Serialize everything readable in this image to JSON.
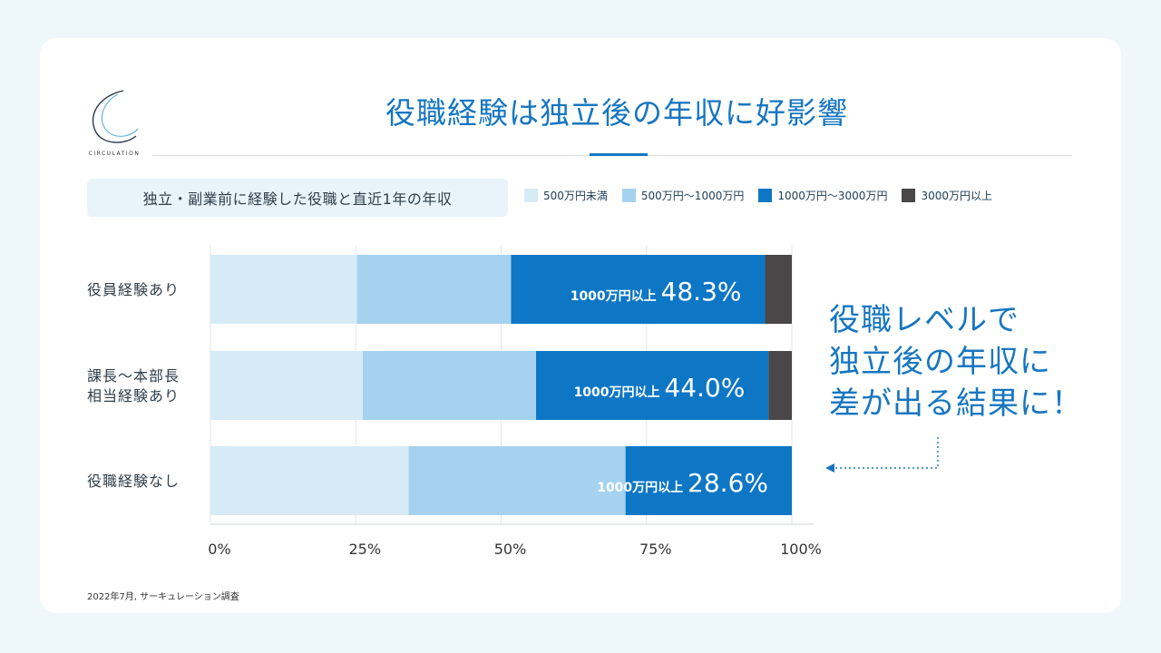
{
  "logo": {
    "text": "CIRCULATION"
  },
  "header": {
    "title": "役職経験は独立後の年収に好影響"
  },
  "colors": {
    "accent": "#1776c0",
    "series": [
      "#d6ebf5",
      "#a5d3ef",
      "#0e77c5",
      "#4a4748"
    ]
  },
  "chart_data": {
    "type": "bar",
    "orientation": "horizontal",
    "stacked": true,
    "title": "独立・副業前に経験した役職と直近1年の年収",
    "categories": [
      "役員経験あり",
      "課長〜本部長\n相当経験あり",
      "役職経験なし"
    ],
    "series": [
      {
        "name": "500万円未満",
        "values": [
          25.2,
          26.2,
          34.1
        ]
      },
      {
        "name": "500万円〜1000万円",
        "values": [
          26.5,
          29.8,
          37.3
        ]
      },
      {
        "name": "1000万円〜3000万円",
        "values": [
          43.7,
          40.0,
          28.6
        ]
      },
      {
        "name": "3000万円以上",
        "values": [
          4.6,
          4.0,
          0.0
        ]
      }
    ],
    "xlim": [
      0,
      100
    ],
    "xticks": [
      "0%",
      "25%",
      "50%",
      "75%",
      "100%"
    ],
    "grid": true,
    "legend": "top-right",
    "annotations": [
      {
        "label": "1000万円以上",
        "value": "48.3%"
      },
      {
        "label": "1000万円以上",
        "value": "44.0%"
      },
      {
        "label": "1000万円以上",
        "value": "28.6%"
      }
    ]
  },
  "callout": {
    "lines": [
      "役職レベルで",
      "独立後の年収に",
      "差が出る結果に！"
    ]
  },
  "footnote": "2022年7月, サーキュレーション調査"
}
